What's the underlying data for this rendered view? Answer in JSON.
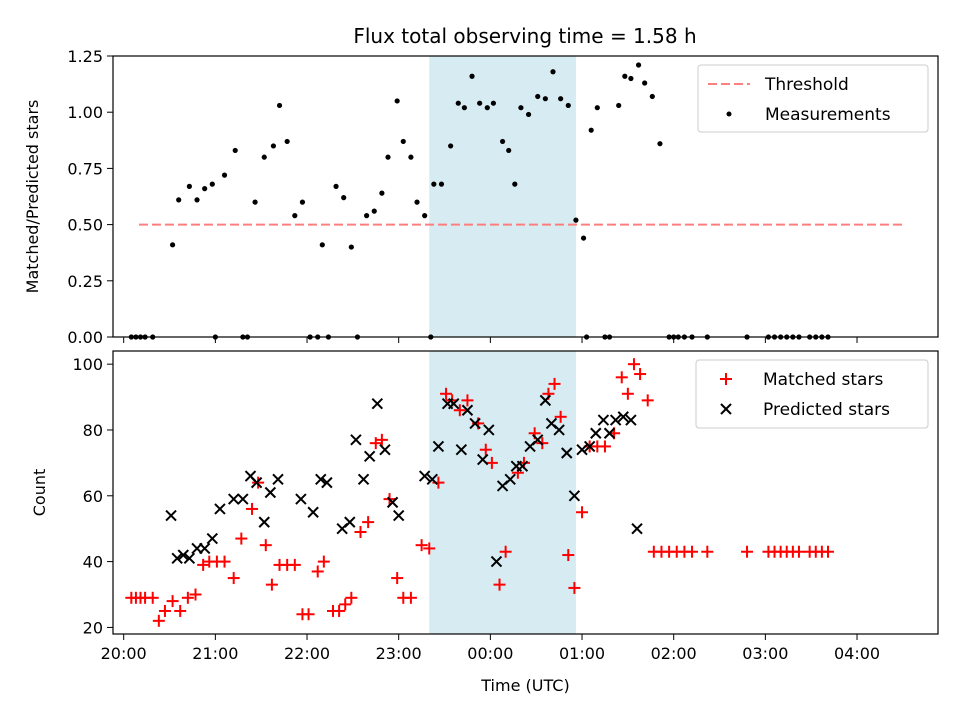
{
  "chart_data": [
    {
      "type": "scatter",
      "title": "Flux total observing time = 1.58 h",
      "xlabel": "",
      "ylabel": "Matched/Predicted stars",
      "xlim": [
        "19:53",
        "04:53"
      ],
      "ylim": [
        0,
        1.25
      ],
      "yticks": [
        "0.00",
        "0.25",
        "0.50",
        "0.75",
        "1.00",
        "1.25"
      ],
      "shaded_region": [
        "23:20",
        "00:56"
      ],
      "legend_position": "top-right",
      "threshold": {
        "name": "Threshold",
        "value": 0.5,
        "x_range": [
          "20:10",
          "04:30"
        ],
        "color": "#ff7f7f"
      },
      "series": [
        {
          "name": "Measurements",
          "color": "#000000",
          "points": [
            [
              "20:05",
              0
            ],
            [
              "20:08",
              0
            ],
            [
              "20:11",
              0
            ],
            [
              "20:14",
              0
            ],
            [
              "20:19",
              0
            ],
            [
              "20:32",
              0.41
            ],
            [
              "20:36",
              0.61
            ],
            [
              "20:43",
              0.67
            ],
            [
              "20:48",
              0.61
            ],
            [
              "20:53",
              0.66
            ],
            [
              "20:58",
              0.68
            ],
            [
              "21:00",
              0
            ],
            [
              "21:06",
              0.72
            ],
            [
              "21:13",
              0.83
            ],
            [
              "21:18",
              0
            ],
            [
              "21:21",
              0
            ],
            [
              "21:26",
              0.6
            ],
            [
              "21:32",
              0.8
            ],
            [
              "21:38",
              0.85
            ],
            [
              "21:42",
              1.03
            ],
            [
              "21:47",
              0.87
            ],
            [
              "21:52",
              0.54
            ],
            [
              "21:57",
              0.6
            ],
            [
              "22:02",
              0
            ],
            [
              "22:07",
              0
            ],
            [
              "22:10",
              0.41
            ],
            [
              "22:14",
              0
            ],
            [
              "22:19",
              0.67
            ],
            [
              "22:24",
              0.62
            ],
            [
              "22:29",
              0.4
            ],
            [
              "22:33",
              0
            ],
            [
              "22:39",
              0.54
            ],
            [
              "22:44",
              0.56
            ],
            [
              "22:49",
              0.64
            ],
            [
              "22:53",
              0.8
            ],
            [
              "22:59",
              1.05
            ],
            [
              "23:03",
              0.87
            ],
            [
              "23:08",
              0.8
            ],
            [
              "23:12",
              0.6
            ],
            [
              "23:17",
              0.54
            ],
            [
              "23:21",
              0
            ],
            [
              "23:23",
              0.68
            ],
            [
              "23:28",
              0.68
            ],
            [
              "23:34",
              0.85
            ],
            [
              "23:39",
              1.04
            ],
            [
              "23:43",
              1.02
            ],
            [
              "23:48",
              1.16
            ],
            [
              "23:53",
              1.04
            ],
            [
              "23:58",
              1.02
            ],
            [
              "00:02",
              1.04
            ],
            [
              "00:08",
              0.87
            ],
            [
              "00:12",
              0.83
            ],
            [
              "00:16",
              0.68
            ],
            [
              "00:20",
              1.02
            ],
            [
              "00:25",
              0.99
            ],
            [
              "00:31",
              1.07
            ],
            [
              "00:36",
              1.06
            ],
            [
              "00:41",
              1.18
            ],
            [
              "00:46",
              1.06
            ],
            [
              "00:51",
              1.03
            ],
            [
              "00:56",
              0.52
            ],
            [
              "01:01",
              0.44
            ],
            [
              "01:03",
              0
            ],
            [
              "01:06",
              0.92
            ],
            [
              "01:10",
              1.02
            ],
            [
              "01:15",
              0
            ],
            [
              "01:18",
              0
            ],
            [
              "01:24",
              1.03
            ],
            [
              "01:28",
              1.16
            ],
            [
              "01:32",
              1.15
            ],
            [
              "01:37",
              1.21
            ],
            [
              "01:41",
              1.13
            ],
            [
              "01:46",
              1.07
            ],
            [
              "01:51",
              0.86
            ],
            [
              "01:57",
              0
            ],
            [
              "02:00",
              0
            ],
            [
              "02:03",
              0
            ],
            [
              "02:07",
              0
            ],
            [
              "02:12",
              0
            ],
            [
              "02:22",
              0
            ],
            [
              "02:48",
              0
            ],
            [
              "03:02",
              0
            ],
            [
              "03:06",
              0
            ],
            [
              "03:10",
              0
            ],
            [
              "03:14",
              0
            ],
            [
              "03:18",
              0
            ],
            [
              "03:22",
              0
            ],
            [
              "03:29",
              0
            ],
            [
              "03:33",
              0
            ],
            [
              "03:37",
              0
            ],
            [
              "03:41",
              0
            ]
          ]
        }
      ]
    },
    {
      "type": "scatter",
      "title": "",
      "xlabel": "Time (UTC)",
      "ylabel": "Count",
      "xlim": [
        "19:53",
        "04:53"
      ],
      "ylim": [
        18,
        104
      ],
      "yticks": [
        "20",
        "40",
        "60",
        "80",
        "100"
      ],
      "xticks": [
        "20:00",
        "21:00",
        "22:00",
        "23:00",
        "00:00",
        "01:00",
        "02:00",
        "03:00",
        "04:00"
      ],
      "shaded_region": [
        "23:20",
        "00:56"
      ],
      "legend_position": "top-right",
      "series": [
        {
          "name": "Matched stars",
          "marker": "plus",
          "color": "#ff0000",
          "points": [
            [
              "20:05",
              29
            ],
            [
              "20:08",
              29
            ],
            [
              "20:11",
              29
            ],
            [
              "20:14",
              29
            ],
            [
              "20:19",
              29
            ],
            [
              "20:23",
              22
            ],
            [
              "20:27",
              25
            ],
            [
              "20:32",
              28
            ],
            [
              "20:37",
              25
            ],
            [
              "20:42",
              29
            ],
            [
              "20:47",
              30
            ],
            [
              "20:52",
              39
            ],
            [
              "20:56",
              40
            ],
            [
              "21:01",
              40
            ],
            [
              "21:06",
              40
            ],
            [
              "21:12",
              35
            ],
            [
              "21:17",
              47
            ],
            [
              "21:24",
              56
            ],
            [
              "21:28",
              64
            ],
            [
              "21:33",
              45
            ],
            [
              "21:37",
              33
            ],
            [
              "21:42",
              39
            ],
            [
              "21:47",
              39
            ],
            [
              "21:52",
              39
            ],
            [
              "21:57",
              24
            ],
            [
              "22:01",
              24
            ],
            [
              "22:07",
              37
            ],
            [
              "22:11",
              40
            ],
            [
              "22:17",
              25
            ],
            [
              "22:21",
              25
            ],
            [
              "22:25",
              27
            ],
            [
              "22:29",
              29
            ],
            [
              "22:35",
              49
            ],
            [
              "22:40",
              52
            ],
            [
              "22:45",
              76
            ],
            [
              "22:49",
              77
            ],
            [
              "22:54",
              59
            ],
            [
              "22:59",
              35
            ],
            [
              "23:03",
              29
            ],
            [
              "23:08",
              29
            ],
            [
              "23:15",
              45
            ],
            [
              "23:20",
              44
            ],
            [
              "23:26",
              64
            ],
            [
              "23:31",
              91
            ],
            [
              "23:35",
              89
            ],
            [
              "23:40",
              86
            ],
            [
              "23:45",
              89
            ],
            [
              "23:52",
              82
            ],
            [
              "23:57",
              74
            ],
            [
              "00:01",
              70
            ],
            [
              "00:06",
              33
            ],
            [
              "00:10",
              43
            ],
            [
              "00:18",
              67
            ],
            [
              "00:22",
              70
            ],
            [
              "00:29",
              79
            ],
            [
              "00:34",
              76
            ],
            [
              "00:38",
              91
            ],
            [
              "00:42",
              94
            ],
            [
              "00:46",
              84
            ],
            [
              "00:51",
              42
            ],
            [
              "00:55",
              32
            ],
            [
              "01:00",
              55
            ],
            [
              "01:05",
              75
            ],
            [
              "01:10",
              75
            ],
            [
              "01:15",
              75
            ],
            [
              "01:21",
              79
            ],
            [
              "01:26",
              96
            ],
            [
              "01:30",
              91
            ],
            [
              "01:34",
              100
            ],
            [
              "01:38",
              97
            ],
            [
              "01:43",
              89
            ],
            [
              "01:47",
              43
            ],
            [
              "01:52",
              43
            ],
            [
              "01:57",
              43
            ],
            [
              "02:02",
              43
            ],
            [
              "02:07",
              43
            ],
            [
              "02:12",
              43
            ],
            [
              "02:22",
              43
            ],
            [
              "02:48",
              43
            ],
            [
              "03:02",
              43
            ],
            [
              "03:06",
              43
            ],
            [
              "03:10",
              43
            ],
            [
              "03:14",
              43
            ],
            [
              "03:18",
              43
            ],
            [
              "03:22",
              43
            ],
            [
              "03:29",
              43
            ],
            [
              "03:33",
              43
            ],
            [
              "03:37",
              43
            ],
            [
              "03:41",
              43
            ]
          ]
        },
        {
          "name": "Predicted stars",
          "marker": "x",
          "color": "#000000",
          "points": [
            [
              "20:31",
              54
            ],
            [
              "20:35",
              41
            ],
            [
              "20:39",
              42
            ],
            [
              "20:43",
              41
            ],
            [
              "20:48",
              44
            ],
            [
              "20:53",
              44
            ],
            [
              "20:58",
              47
            ],
            [
              "21:03",
              56
            ],
            [
              "21:12",
              59
            ],
            [
              "21:18",
              59
            ],
            [
              "21:23",
              66
            ],
            [
              "21:27",
              64
            ],
            [
              "21:32",
              52
            ],
            [
              "21:36",
              61
            ],
            [
              "21:41",
              65
            ],
            [
              "21:56",
              59
            ],
            [
              "22:04",
              55
            ],
            [
              "22:09",
              65
            ],
            [
              "22:13",
              64
            ],
            [
              "22:23",
              50
            ],
            [
              "22:28",
              52
            ],
            [
              "22:32",
              77
            ],
            [
              "22:37",
              65
            ],
            [
              "22:41",
              72
            ],
            [
              "22:46",
              88
            ],
            [
              "22:51",
              74
            ],
            [
              "22:56",
              58
            ],
            [
              "23:00",
              54
            ],
            [
              "23:17",
              66
            ],
            [
              "23:22",
              65
            ],
            [
              "23:26",
              75
            ],
            [
              "23:32",
              88
            ],
            [
              "23:36",
              88
            ],
            [
              "23:41",
              74
            ],
            [
              "23:45",
              86
            ],
            [
              "23:50",
              82
            ],
            [
              "23:55",
              71
            ],
            [
              "23:59",
              80
            ],
            [
              "00:04",
              40
            ],
            [
              "00:08",
              63
            ],
            [
              "00:13",
              65
            ],
            [
              "00:17",
              69
            ],
            [
              "00:21",
              69
            ],
            [
              "00:26",
              75
            ],
            [
              "00:31",
              77
            ],
            [
              "00:36",
              89
            ],
            [
              "00:40",
              82
            ],
            [
              "00:45",
              80
            ],
            [
              "00:50",
              73
            ],
            [
              "00:55",
              60
            ],
            [
              "01:00",
              74
            ],
            [
              "01:05",
              75
            ],
            [
              "01:09",
              79
            ],
            [
              "01:14",
              83
            ],
            [
              "01:18",
              79
            ],
            [
              "01:22",
              83
            ],
            [
              "01:27",
              84
            ],
            [
              "01:32",
              83
            ],
            [
              "01:36",
              50
            ]
          ]
        }
      ]
    }
  ]
}
